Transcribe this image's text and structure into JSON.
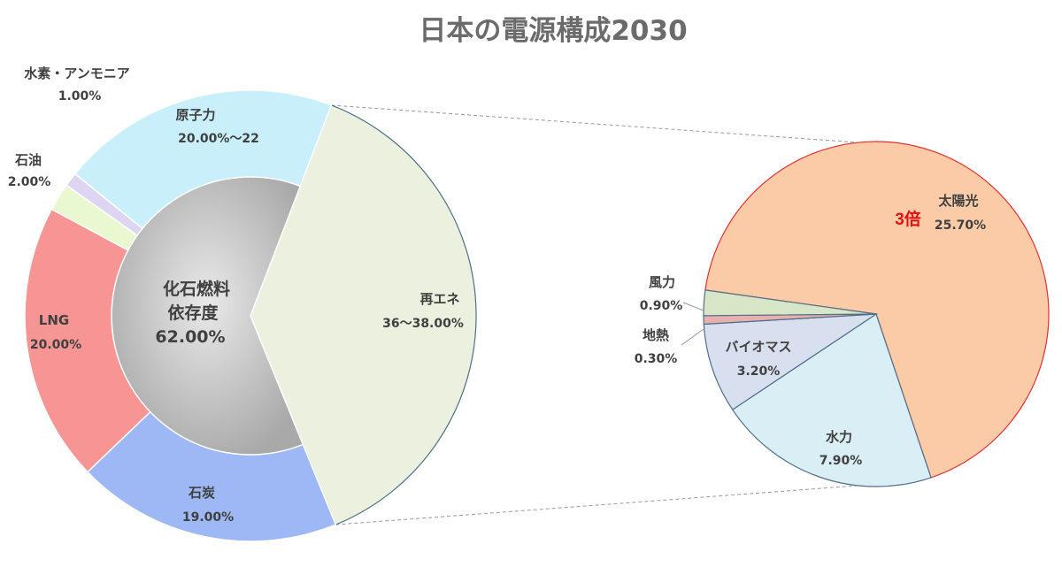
{
  "chart_data": {
    "type": "pie",
    "title": "日本の電源構成2030",
    "main_pie": {
      "slices": [
        {
          "name": "再エネ",
          "value_text": "36〜38.00%",
          "value": 38.0,
          "color": "#ebf1de",
          "stroke": "#4f6f8a"
        },
        {
          "name": "石炭",
          "value_text": "19.00%",
          "value": 19.0,
          "color": "#9db8f5",
          "stroke": "#ffffff"
        },
        {
          "name": "LNG",
          "value_text": "20.00%",
          "value": 20.0,
          "color": "#f79494",
          "stroke": "#ffffff"
        },
        {
          "name": "石油",
          "value_text": "2.00%",
          "value": 2.0,
          "color": "#e9f8d0",
          "stroke": "#ffffff"
        },
        {
          "name": "水素・アンモニア",
          "value_text": "1.00%",
          "value": 1.0,
          "color": "#ddd5f2",
          "stroke": "#ffffff"
        },
        {
          "name": "原子力",
          "value_text": "20.00%〜22",
          "value": 20.0,
          "color": "#c9effa",
          "stroke": "#ffffff"
        }
      ],
      "center": {
        "line1": "化石燃料",
        "line2": "依存度",
        "line3": "62.00%"
      }
    },
    "sub_pie": {
      "slices": [
        {
          "name": "太陽光",
          "value_text": "25.70%",
          "value": 25.7,
          "color": "#fbcba8",
          "stroke": "#e03030"
        },
        {
          "name": "水力",
          "value_text": "7.90%",
          "value": 7.9,
          "color": "#daeef5",
          "stroke": "#4f6f8a"
        },
        {
          "name": "バイオマス",
          "value_text": "3.20%",
          "value": 3.2,
          "color": "#d8dfef",
          "stroke": "#4f6f8a"
        },
        {
          "name": "地熱",
          "value_text": "0.30%",
          "value": 0.3,
          "color": "#e8b0ad",
          "stroke": "#4f6f8a"
        },
        {
          "name": "風力",
          "value_text": "0.90%",
          "value": 0.9,
          "color": "#d7e6c6",
          "stroke": "#4f6f8a"
        }
      ],
      "annotation": "3倍",
      "annotation_color": "#e01010"
    }
  }
}
